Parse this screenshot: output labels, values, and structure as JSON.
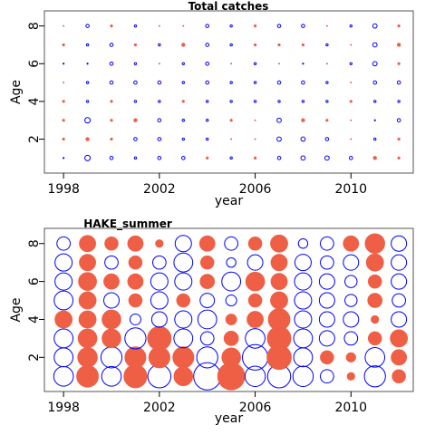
{
  "chart_data": [
    {
      "type": "scatter",
      "title": "Total catches",
      "xlabel": "year",
      "ylabel": "Age",
      "xticks": [
        1998,
        2002,
        2006,
        2010
      ],
      "yticks": [
        2,
        4,
        6,
        8
      ],
      "xlim": [
        1997.2,
        2012.6
      ],
      "ylim": [
        0.2,
        8.8
      ],
      "ages": [
        1,
        2,
        3,
        4,
        5,
        6,
        7,
        8
      ],
      "years": [
        1998,
        1999,
        2000,
        2001,
        2002,
        2003,
        2004,
        2005,
        2006,
        2007,
        2008,
        2009,
        2010,
        2011,
        2012
      ],
      "encoding": "bubble size = |residual|; filled = positive, open = negative",
      "colors": {
        "positive": "#EE5F46",
        "negative": "#0000FF"
      },
      "residuals": [
        [
          -0.1,
          -0.5,
          -0.3,
          -0.2,
          -0.3,
          -0.3,
          0.2,
          -0.2,
          0.2,
          -0.3,
          -0.4,
          -0.4,
          -0.3,
          0.3,
          0.2
        ],
        [
          0.2,
          0.3,
          0.2,
          -0.3,
          -0.3,
          -0.2,
          -0.2,
          0.1,
          0.1,
          -0.4,
          -0.4,
          -0.3,
          0.1,
          -0.2,
          0.2
        ],
        [
          0.2,
          -0.5,
          0.2,
          0.3,
          -0.3,
          -0.2,
          -0.2,
          0.2,
          0.1,
          -0.4,
          0.3,
          0.2,
          0.1,
          -0.1,
          -0.3
        ],
        [
          0.2,
          -0.2,
          0.2,
          -0.2,
          -0.2,
          0.2,
          -0.2,
          -0.2,
          -0.2,
          -0.2,
          -0.2,
          -0.2,
          0.2,
          -0.2,
          -0.2
        ],
        [
          0.1,
          -0.2,
          -0.3,
          -0.3,
          -0.3,
          -0.2,
          -0.3,
          -0.2,
          -0.2,
          -0.3,
          -0.3,
          -0.2,
          0.1,
          -0.3,
          -0.3
        ],
        [
          -0.1,
          -0.1,
          -0.3,
          -0.2,
          0.1,
          -0.2,
          -0.3,
          0.1,
          -0.2,
          0.1,
          -0.1,
          0.1,
          -0.2,
          -0.4,
          0.2
        ],
        [
          0.2,
          -0.2,
          -0.3,
          0.2,
          -0.2,
          0.3,
          -0.3,
          -0.2,
          0.2,
          0.2,
          0.2,
          -0.2,
          0.1,
          -0.4,
          0.3
        ],
        [
          0.1,
          -0.3,
          0.2,
          -0.2,
          0.1,
          0.1,
          -0.3,
          -0.2,
          0.2,
          -0.3,
          -0.3,
          0.1,
          -0.2,
          -0.4,
          0.2
        ]
      ]
    },
    {
      "type": "scatter",
      "title": "HAKE_summer",
      "xlabel": "year",
      "ylabel": "Age",
      "xticks": [
        1998,
        2002,
        2006,
        2010
      ],
      "yticks": [
        2,
        4,
        6,
        8
      ],
      "xlim": [
        1997.2,
        2012.6
      ],
      "ylim": [
        0.2,
        8.8
      ],
      "ages": [
        1,
        2,
        3,
        4,
        5,
        6,
        7,
        8
      ],
      "years": [
        1998,
        1999,
        2000,
        2001,
        2002,
        2003,
        2004,
        2005,
        2006,
        2007,
        2008,
        2009,
        2010,
        2011,
        2012
      ],
      "encoding": "bubble size = |residual|; filled = positive, open = negative",
      "colors": {
        "positive": "#EE5F46",
        "negative": "#0000FF"
      },
      "residuals": [
        [
          -1.3,
          1.6,
          -1.3,
          1.8,
          -1.8,
          1.2,
          -2.5,
          2.5,
          -1.4,
          -1.8,
          -1.4,
          -0.6,
          0.2,
          -1.5,
          0.6
        ],
        [
          -1.2,
          1.3,
          -1.5,
          1.5,
          1.5,
          1.5,
          -1.5,
          1.2,
          -2.2,
          2.0,
          -1.2,
          0.6,
          0.3,
          -1.3,
          0.8
        ],
        [
          -1.2,
          1.2,
          1.2,
          -1.5,
          1.9,
          -1.2,
          -0.6,
          0.7,
          -1.3,
          1.9,
          -1.2,
          -0.8,
          -0.6,
          0.6,
          1.0
        ],
        [
          1.0,
          1.0,
          1.2,
          -0.4,
          -0.8,
          -1.0,
          -1.2,
          0.4,
          0.9,
          1.6,
          -1.0,
          -0.8,
          -0.8,
          0.2,
          -0.8
        ],
        [
          -1.2,
          1.0,
          -0.8,
          0.6,
          -1.0,
          0.6,
          -0.7,
          -0.4,
          0.6,
          1.0,
          -1.0,
          -0.8,
          -0.5,
          0.7,
          -0.6
        ],
        [
          -1.0,
          1.1,
          0.8,
          0.8,
          -1.0,
          -1.0,
          0.7,
          -1.2,
          1.2,
          0.9,
          -1.0,
          -0.8,
          -0.5,
          0.6,
          -0.8
        ],
        [
          -1.0,
          0.9,
          -0.6,
          0.6,
          -0.6,
          -1.2,
          0.6,
          -0.3,
          -0.8,
          0.9,
          -0.9,
          -0.6,
          -0.8,
          1.0,
          -0.8
        ],
        [
          -0.6,
          0.9,
          0.6,
          0.8,
          0.2,
          -0.9,
          0.8,
          -0.6,
          0.6,
          1.0,
          -0.3,
          -0.6,
          0.8,
          1.3,
          -0.8
        ]
      ]
    }
  ]
}
